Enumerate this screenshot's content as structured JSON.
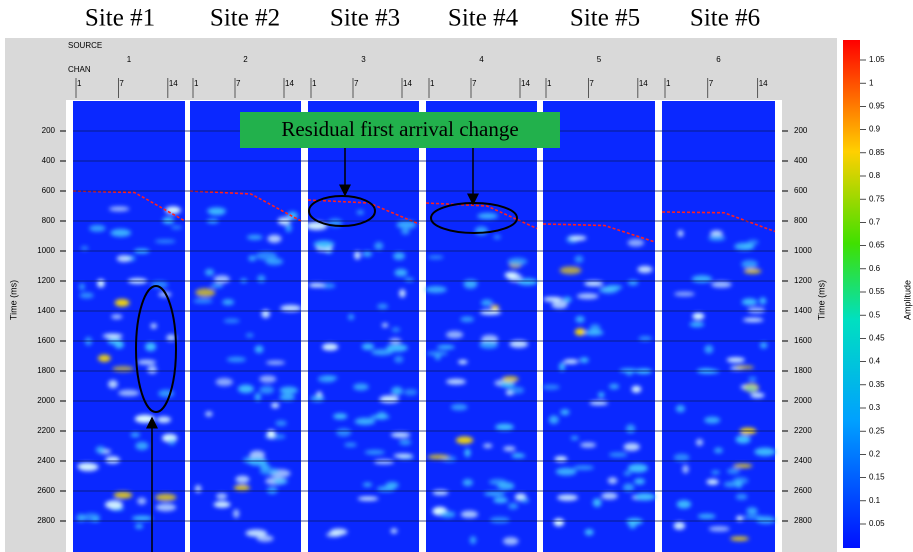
{
  "site_labels": [
    "Site #1",
    "Site #2",
    "Site #3",
    "Site #4",
    "Site #5",
    "Site #6"
  ],
  "header": {
    "source_label": "SOURCE",
    "chan_label": "CHAN",
    "sources": [
      1,
      2,
      3,
      4,
      5,
      6
    ],
    "chan_ticks": [
      1,
      7,
      14
    ]
  },
  "time_axis": {
    "label": "Time (ms)",
    "ticks": [
      200,
      400,
      600,
      800,
      1000,
      1200,
      1400,
      1600,
      1800,
      2000,
      2200,
      2400,
      2600,
      2800
    ]
  },
  "colorbar": {
    "label": "Amplitude",
    "ticks": [
      1.05,
      1,
      0.95,
      0.9,
      0.85,
      0.8,
      0.75,
      0.7,
      0.65,
      0.6,
      0.55,
      0.5,
      0.45,
      0.4,
      0.35,
      0.3,
      0.25,
      0.2,
      0.15,
      0.1,
      0.05
    ]
  },
  "annotation": "Residual first arrival change"
}
